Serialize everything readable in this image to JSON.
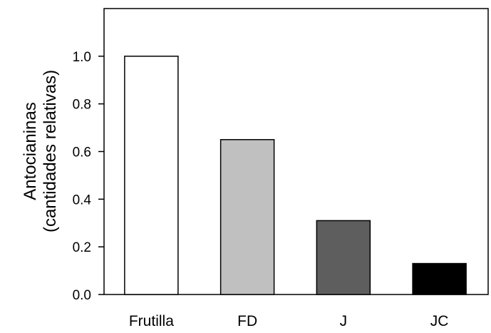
{
  "chart_data": {
    "type": "bar",
    "categories": [
      "Frutilla",
      "FD",
      "J",
      "JC"
    ],
    "values": [
      1.0,
      0.65,
      0.31,
      0.13
    ],
    "bar_colors": [
      "#ffffff",
      "#c0c0c0",
      "#5e5e5e",
      "#000000"
    ],
    "bar_stroke": "#000000",
    "title": "",
    "xlabel": "",
    "ylabel_line1": "Antocianinas",
    "ylabel_line2": "(cantidades relativas)",
    "ylim": [
      0,
      1.2
    ],
    "yticks": [
      0.0,
      0.2,
      0.4,
      0.6,
      0.8,
      1.0
    ],
    "ytick_labels": [
      "0.0",
      "0.2",
      "0.4",
      "0.6",
      "0.8",
      "1.0"
    ],
    "grid": false,
    "legend": false
  }
}
